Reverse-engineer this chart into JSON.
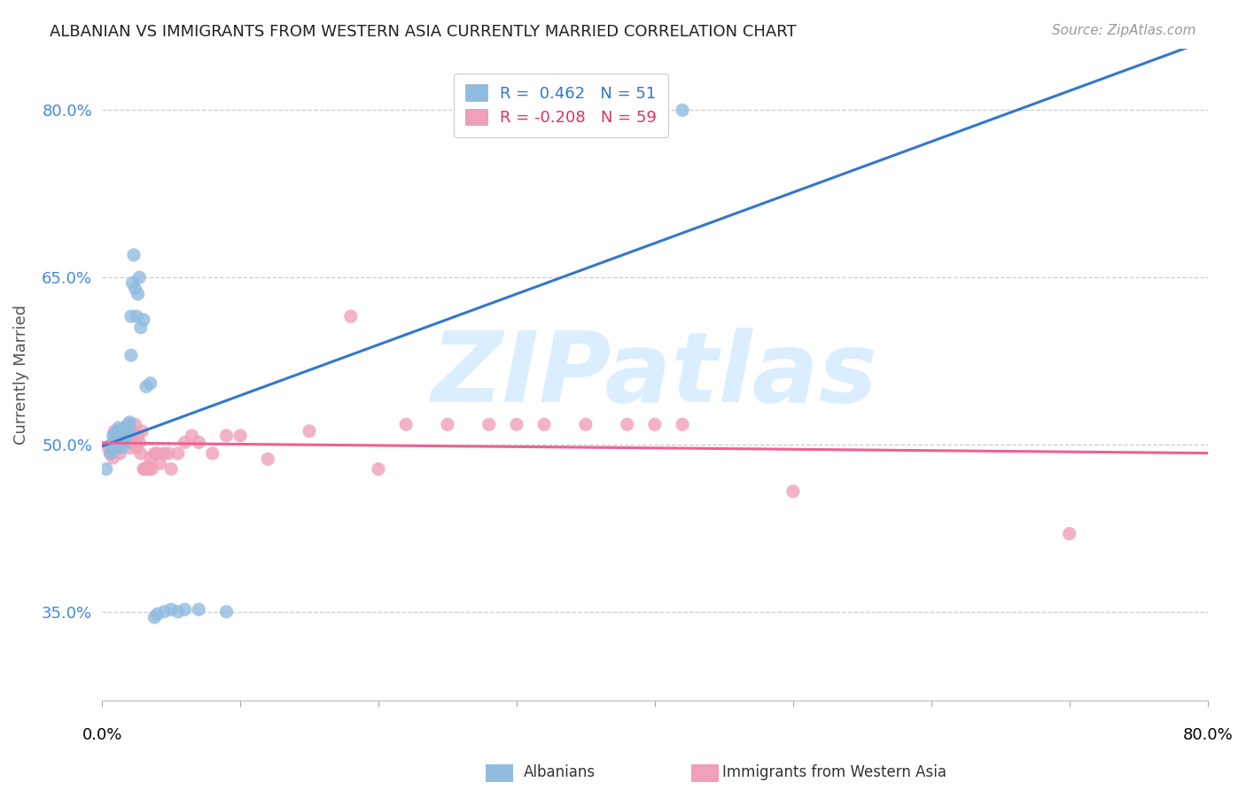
{
  "title": "ALBANIAN VS IMMIGRANTS FROM WESTERN ASIA CURRENTLY MARRIED CORRELATION CHART",
  "source": "Source: ZipAtlas.com",
  "ylabel": "Currently Married",
  "ytick_labels": [
    "80.0%",
    "65.0%",
    "50.0%",
    "35.0%"
  ],
  "ytick_values": [
    0.8,
    0.65,
    0.5,
    0.35
  ],
  "xlim": [
    0.0,
    0.8
  ],
  "ylim": [
    0.27,
    0.855
  ],
  "legend_label1": "Albanians",
  "legend_label2": "Immigrants from Western Asia",
  "legend_R1": "R =  0.462",
  "legend_N1": "N = 51",
  "legend_R2": "R = -0.208",
  "legend_N2": "N = 59",
  "blue_color": "#90bce0",
  "pink_color": "#f0a0b8",
  "line_blue": "#3377cc",
  "line_pink": "#f06090",
  "watermark_color": "#daeeff",
  "blue_R": 0.462,
  "blue_N": 51,
  "pink_R": -0.208,
  "pink_N": 59,
  "blue_points_x": [
    0.003,
    0.006,
    0.007,
    0.007,
    0.008,
    0.008,
    0.009,
    0.009,
    0.01,
    0.01,
    0.01,
    0.011,
    0.011,
    0.012,
    0.012,
    0.013,
    0.013,
    0.014,
    0.014,
    0.015,
    0.015,
    0.016,
    0.016,
    0.017,
    0.017,
    0.018,
    0.018,
    0.019,
    0.02,
    0.02,
    0.021,
    0.021,
    0.022,
    0.023,
    0.024,
    0.025,
    0.026,
    0.027,
    0.028,
    0.03,
    0.032,
    0.035,
    0.038,
    0.04,
    0.045,
    0.05,
    0.055,
    0.06,
    0.07,
    0.09,
    0.42
  ],
  "blue_points_y": [
    0.478,
    0.492,
    0.5,
    0.497,
    0.502,
    0.508,
    0.497,
    0.502,
    0.5,
    0.505,
    0.51,
    0.498,
    0.512,
    0.497,
    0.515,
    0.502,
    0.51,
    0.505,
    0.512,
    0.498,
    0.512,
    0.505,
    0.515,
    0.502,
    0.512,
    0.508,
    0.515,
    0.518,
    0.512,
    0.52,
    0.58,
    0.615,
    0.645,
    0.67,
    0.64,
    0.615,
    0.635,
    0.65,
    0.605,
    0.612,
    0.552,
    0.555,
    0.345,
    0.348,
    0.35,
    0.352,
    0.35,
    0.352,
    0.352,
    0.35,
    0.8
  ],
  "pink_points_x": [
    0.004,
    0.006,
    0.008,
    0.009,
    0.01,
    0.011,
    0.012,
    0.013,
    0.014,
    0.015,
    0.016,
    0.017,
    0.018,
    0.019,
    0.02,
    0.021,
    0.022,
    0.023,
    0.024,
    0.025,
    0.026,
    0.027,
    0.028,
    0.029,
    0.03,
    0.031,
    0.032,
    0.033,
    0.034,
    0.035,
    0.036,
    0.038,
    0.04,
    0.042,
    0.045,
    0.048,
    0.05,
    0.055,
    0.06,
    0.065,
    0.07,
    0.08,
    0.09,
    0.1,
    0.12,
    0.15,
    0.18,
    0.2,
    0.22,
    0.25,
    0.28,
    0.3,
    0.32,
    0.35,
    0.38,
    0.4,
    0.42,
    0.5,
    0.7
  ],
  "pink_points_y": [
    0.498,
    0.492,
    0.488,
    0.512,
    0.508,
    0.502,
    0.497,
    0.492,
    0.502,
    0.502,
    0.508,
    0.512,
    0.517,
    0.508,
    0.497,
    0.502,
    0.508,
    0.512,
    0.518,
    0.497,
    0.508,
    0.502,
    0.492,
    0.512,
    0.478,
    0.478,
    0.478,
    0.48,
    0.478,
    0.488,
    0.478,
    0.492,
    0.492,
    0.483,
    0.492,
    0.492,
    0.478,
    0.492,
    0.502,
    0.508,
    0.502,
    0.492,
    0.508,
    0.508,
    0.487,
    0.512,
    0.615,
    0.478,
    0.518,
    0.518,
    0.518,
    0.518,
    0.518,
    0.518,
    0.518,
    0.518,
    0.518,
    0.458,
    0.42
  ],
  "xtick_positions": [
    0.0,
    0.1,
    0.2,
    0.3,
    0.4,
    0.5,
    0.6,
    0.7,
    0.8
  ]
}
